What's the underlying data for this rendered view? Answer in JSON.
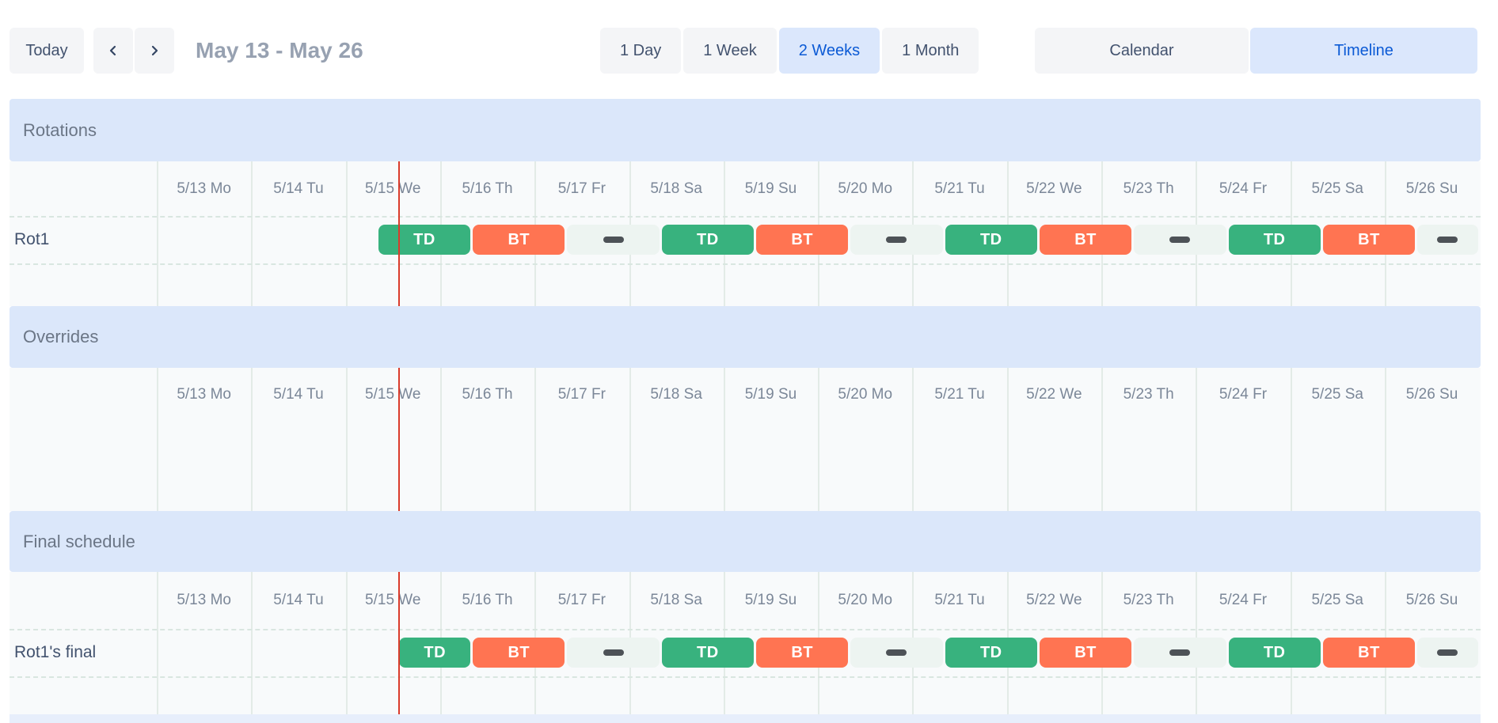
{
  "toolbar": {
    "today": "Today",
    "prev_icon": "chevron-left",
    "next_icon": "chevron-right",
    "range_title": "May 13 - May 26",
    "zoom_options": [
      {
        "label": "1 Day",
        "selected": false
      },
      {
        "label": "1 Week",
        "selected": false
      },
      {
        "label": "2 Weeks",
        "selected": true
      },
      {
        "label": "1 Month",
        "selected": false
      }
    ],
    "view_options": [
      {
        "label": "Calendar",
        "selected": false
      },
      {
        "label": "Timeline",
        "selected": true
      }
    ]
  },
  "timeline": {
    "days": [
      "5/13 Mo",
      "5/14 Tu",
      "5/15 We",
      "5/16 Th",
      "5/17 Fr",
      "5/18 Sa",
      "5/19 Su",
      "5/20 Mo",
      "5/21 Tu",
      "5/22 We",
      "5/23 Th",
      "5/24 Fr",
      "5/25 Sa",
      "5/26 Su"
    ],
    "now_day_fraction": 2.556,
    "sections": [
      {
        "title": "Rotations",
        "rows": [
          {
            "label": "Rot1",
            "segments": [
              {
                "kind": "td",
                "label": "TD",
                "start": 2.333,
                "end": 3.333
              },
              {
                "kind": "bt",
                "label": "BT",
                "start": 3.333,
                "end": 4.333
              },
              {
                "kind": "gap",
                "label": "",
                "start": 4.333,
                "end": 5.333
              },
              {
                "kind": "td",
                "label": "TD",
                "start": 5.333,
                "end": 6.333
              },
              {
                "kind": "bt",
                "label": "BT",
                "start": 6.333,
                "end": 7.333
              },
              {
                "kind": "gap",
                "label": "",
                "start": 7.333,
                "end": 8.333
              },
              {
                "kind": "td",
                "label": "TD",
                "start": 8.333,
                "end": 9.333
              },
              {
                "kind": "bt",
                "label": "BT",
                "start": 9.333,
                "end": 10.333
              },
              {
                "kind": "gap",
                "label": "",
                "start": 10.333,
                "end": 11.333
              },
              {
                "kind": "td",
                "label": "TD",
                "start": 11.333,
                "end": 12.333
              },
              {
                "kind": "bt",
                "label": "BT",
                "start": 12.333,
                "end": 13.333
              },
              {
                "kind": "gap",
                "label": "",
                "start": 13.333,
                "end": 14.0
              }
            ]
          }
        ]
      },
      {
        "title": "Overrides",
        "rows": []
      },
      {
        "title": "Final schedule",
        "rows": [
          {
            "label": "Rot1's final",
            "segments": [
              {
                "kind": "td",
                "label": "TD",
                "start": 2.556,
                "end": 3.333
              },
              {
                "kind": "bt",
                "label": "BT",
                "start": 3.333,
                "end": 4.333
              },
              {
                "kind": "gap",
                "label": "",
                "start": 4.333,
                "end": 5.333
              },
              {
                "kind": "td",
                "label": "TD",
                "start": 5.333,
                "end": 6.333
              },
              {
                "kind": "bt",
                "label": "BT",
                "start": 6.333,
                "end": 7.333
              },
              {
                "kind": "gap",
                "label": "",
                "start": 7.333,
                "end": 8.333
              },
              {
                "kind": "td",
                "label": "TD",
                "start": 8.333,
                "end": 9.333
              },
              {
                "kind": "bt",
                "label": "BT",
                "start": 9.333,
                "end": 10.333
              },
              {
                "kind": "gap",
                "label": "",
                "start": 10.333,
                "end": 11.333
              },
              {
                "kind": "td",
                "label": "TD",
                "start": 11.333,
                "end": 12.333
              },
              {
                "kind": "bt",
                "label": "BT",
                "start": 12.333,
                "end": 13.333
              },
              {
                "kind": "gap",
                "label": "",
                "start": 13.333,
                "end": 14.0
              }
            ]
          }
        ]
      }
    ]
  },
  "colors": {
    "shift_td": "#38b27e",
    "shift_bt": "#ff7452",
    "gap_block_bg": "#edf4f1",
    "gap_dash": "#4d5257",
    "now_line": "#da3b2b",
    "section_band_bg": "#dbe7fa",
    "selected_bg": "#dbe7fc",
    "selected_text": "#0b5ad5"
  }
}
